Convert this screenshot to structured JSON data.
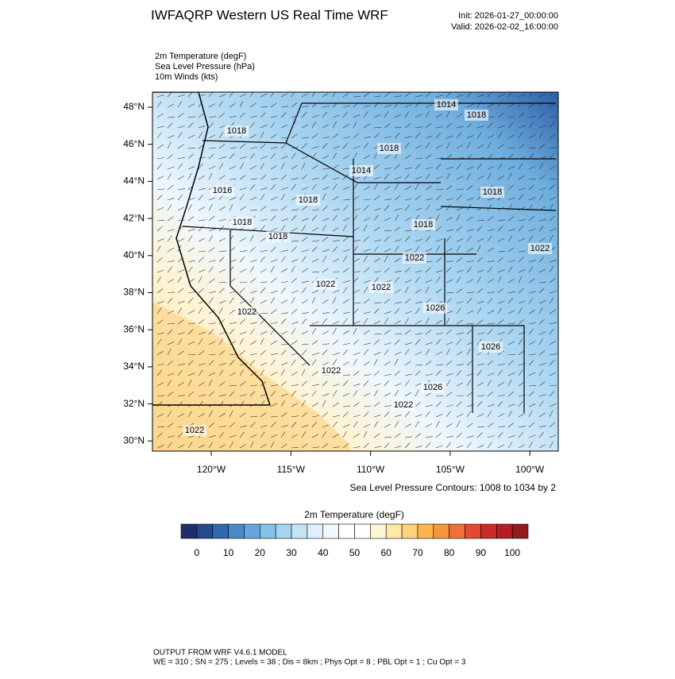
{
  "header": {
    "title": "IWFAQRP Western US Real Time WRF",
    "init": "Init: 2026-01-27_00:00:00",
    "valid": "Valid: 2026-02-02_16:00:00"
  },
  "fields": [
    "2m Temperature   (degF)",
    "Sea Level Pressure   (hPa)",
    "10m Winds   (kts)"
  ],
  "map": {
    "lat_labels": [
      "48°N",
      "46°N",
      "44°N",
      "42°N",
      "40°N",
      "38°N",
      "36°N",
      "34°N",
      "32°N",
      "30°N"
    ],
    "lon_labels": [
      "120°W",
      "115°W",
      "110°W",
      "105°W",
      "100°W"
    ],
    "contour_labels": [
      "1014",
      "1018",
      "1018",
      "1014",
      "1016",
      "1018",
      "1018",
      "1018",
      "1018",
      "1018",
      "1018",
      "1022",
      "1022",
      "1022",
      "1026",
      "1022",
      "1022",
      "1026",
      "1026",
      "1022",
      "1022",
      "1022"
    ],
    "contour_note": "Sea Level Pressure Contours: 1008 to 1034 by 2"
  },
  "colorbar": {
    "title": "2m Temperature  (degF)",
    "colors": [
      "#1d2e6b",
      "#234a8c",
      "#2f68ad",
      "#4a8ac8",
      "#64a6dc",
      "#86bfe8",
      "#a6d3f1",
      "#c4e3f7",
      "#dff0fb",
      "#f2f9fe",
      "#ffffff",
      "#ffffff",
      "#fff6d8",
      "#ffe8a8",
      "#fdd27c",
      "#fbb44f",
      "#f79540",
      "#f0703a",
      "#e24a33",
      "#cc2b2b",
      "#b41f24",
      "#931a1e"
    ],
    "labels": [
      0,
      10,
      20,
      30,
      40,
      50,
      60,
      70,
      80,
      90,
      100
    ]
  },
  "footer": [
    "OUTPUT FROM WRF V4.6.1 MODEL",
    "WE = 310 ; SN = 275 ; Levels = 38 ; Dis = 8km ; Phys Opt = 8 ; PBL Opt = 1 ; Cu Opt = 3"
  ]
}
